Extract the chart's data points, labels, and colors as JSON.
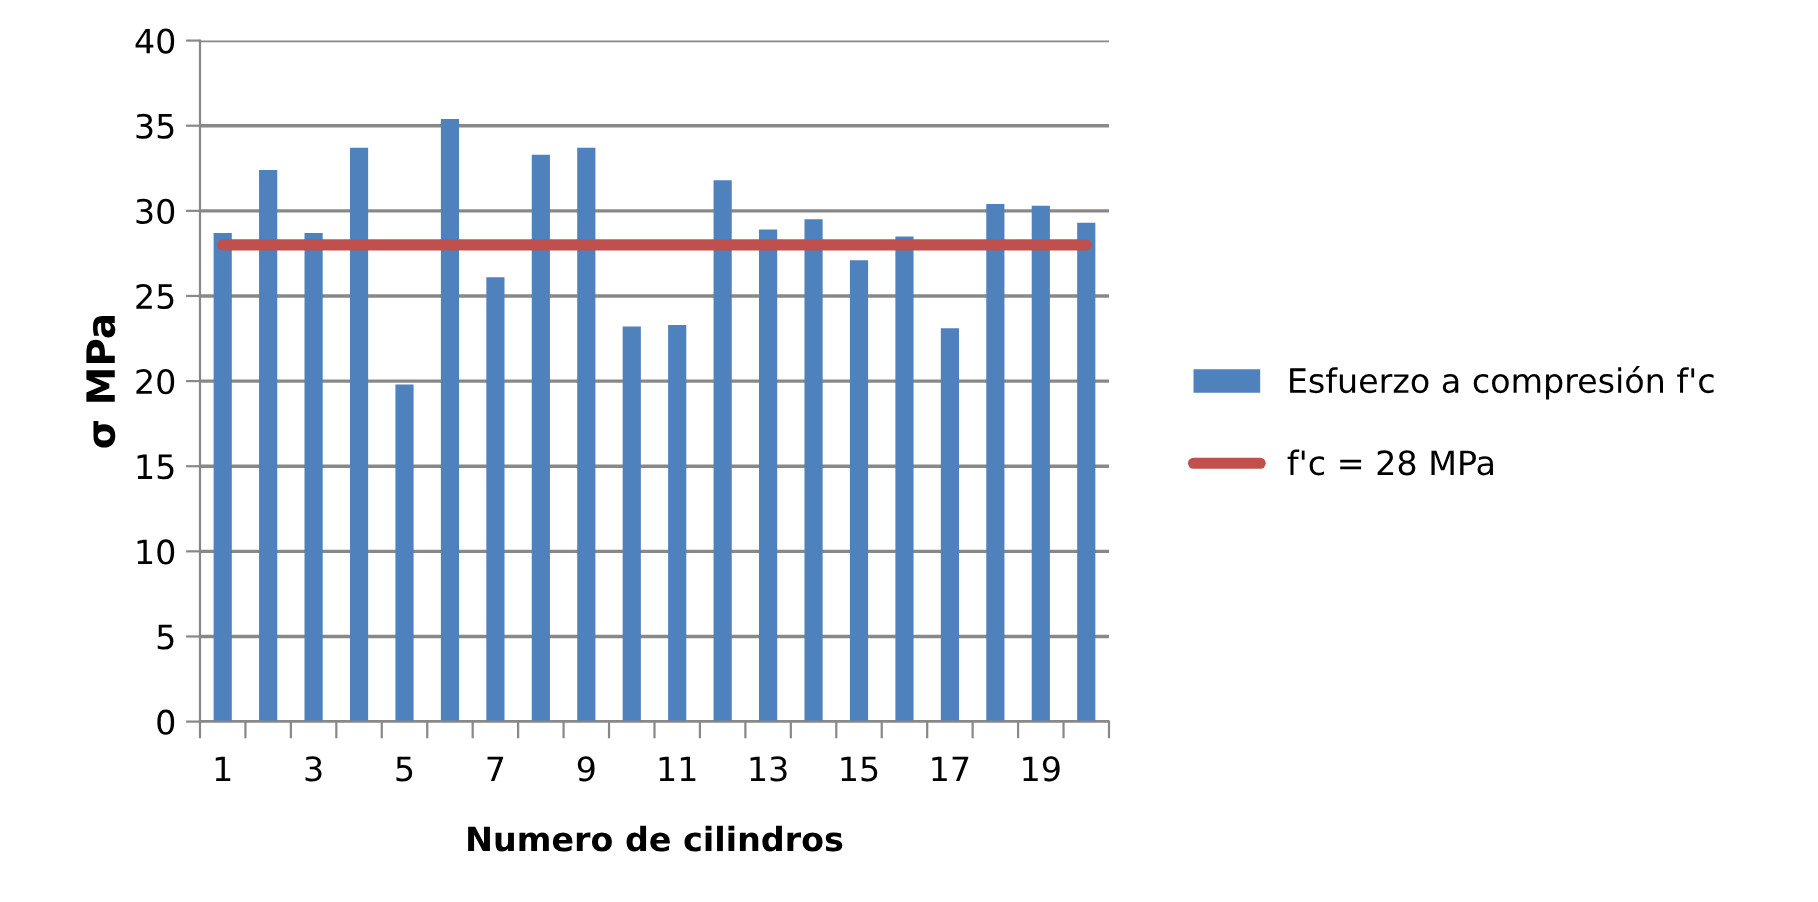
{
  "chart_data": {
    "type": "bar",
    "xlabel": "Numero de cilindros",
    "ylabel": "σ MPa",
    "categories": [
      "1",
      null,
      "3",
      null,
      "5",
      null,
      "7",
      null,
      "9",
      null,
      "11",
      null,
      "13",
      null,
      "15",
      null,
      "17",
      null,
      "19",
      null
    ],
    "series": [
      {
        "name": "Esfuerzo a compresión f'c",
        "color": "#4f81bd",
        "values": [
          28.7,
          32.4,
          28.7,
          33.7,
          19.8,
          35.4,
          26.1,
          33.3,
          33.7,
          23.2,
          23.3,
          31.8,
          28.9,
          29.5,
          27.1,
          28.5,
          23.1,
          30.4,
          30.3,
          29.3
        ]
      },
      {
        "name": "f'c = 28 MPa",
        "color": "#c0504d",
        "type": "line",
        "values": [
          28,
          28,
          28,
          28,
          28,
          28,
          28,
          28,
          28,
          28,
          28,
          28,
          28,
          28,
          28,
          28,
          28,
          28,
          28,
          28
        ]
      }
    ],
    "ylim": [
      0,
      40
    ],
    "yticks": [
      0,
      5,
      10,
      15,
      20,
      25,
      30,
      35,
      40
    ],
    "grid": "y",
    "legend": "right"
  }
}
